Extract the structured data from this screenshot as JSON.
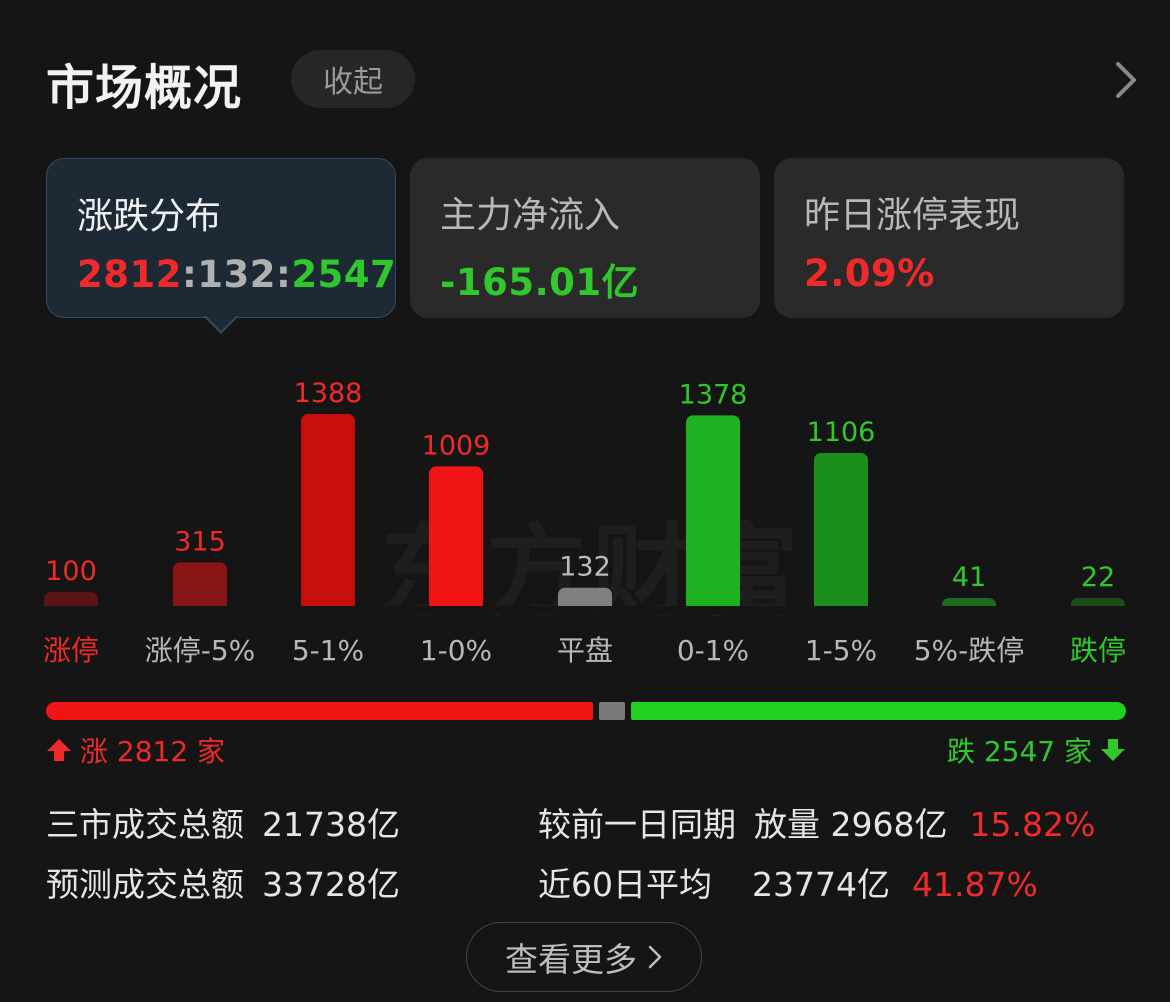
{
  "header": {
    "title": "市场概况",
    "collapse_label": "收起"
  },
  "cards": [
    {
      "label": "涨跌分布",
      "value_up": "2812",
      "sep1": ":",
      "value_flat": "132",
      "sep2": ":",
      "value_down": "2547"
    },
    {
      "label": "主力净流入",
      "value": "-165.01亿"
    },
    {
      "label": "昨日涨停表现",
      "value": "2.09%"
    }
  ],
  "watermark": "东方财富",
  "chart_data": {
    "type": "bar",
    "categories": [
      "涨停",
      "涨停-5%",
      "5-1%",
      "1-0%",
      "平盘",
      "0-1%",
      "1-5%",
      "5%-跌停",
      "跌停"
    ],
    "values": [
      100,
      315,
      1388,
      1009,
      132,
      1378,
      1106,
      41,
      22
    ],
    "value_labels": [
      "100",
      "315",
      "1388",
      "1009",
      "132",
      "1378",
      "1106",
      "41",
      "22"
    ],
    "colors": [
      "#5a1414",
      "#8a1515",
      "#c80d0d",
      "#f01414",
      "#808080",
      "#1fb11f",
      "#1a8f1a",
      "#1d6b1d",
      "#1a4d1a"
    ],
    "label_colors": [
      "#f02a2a",
      "#f02a2a",
      "#f02a2a",
      "#f02a2a",
      "#bdbdbd",
      "#31c82d",
      "#31c82d",
      "#31c82d",
      "#31c82d"
    ],
    "category_colors": [
      "#f02a2a",
      "#b8b8b8",
      "#b8b8b8",
      "#b8b8b8",
      "#b8b8b8",
      "#b8b8b8",
      "#b8b8b8",
      "#b8b8b8",
      "#31c82d"
    ]
  },
  "split": {
    "up": 2812,
    "flat": 132,
    "down": 2547,
    "up_color": "#f01414",
    "flat_color": "#7a7a7a",
    "down_color": "#22d11e"
  },
  "summary": {
    "up_label": "涨 2812 家",
    "down_label": "跌 2547 家"
  },
  "stats": {
    "total_label": "三市成交总额",
    "total_value": "21738亿",
    "forecast_label": "预测成交总额",
    "forecast_value": "33728亿",
    "prev_label": "较前一日同期",
    "prev_value": "放量 2968亿",
    "prev_pct": "15.82%",
    "avg_label": "近60日平均",
    "avg_value": "23774亿",
    "avg_pct": "41.87%"
  },
  "more_label": "查看更多",
  "icons": {
    "collapse_chevron": "chevron-right-icon",
    "up_arrow": "arrow-up-icon",
    "down_arrow": "arrow-down-icon"
  }
}
